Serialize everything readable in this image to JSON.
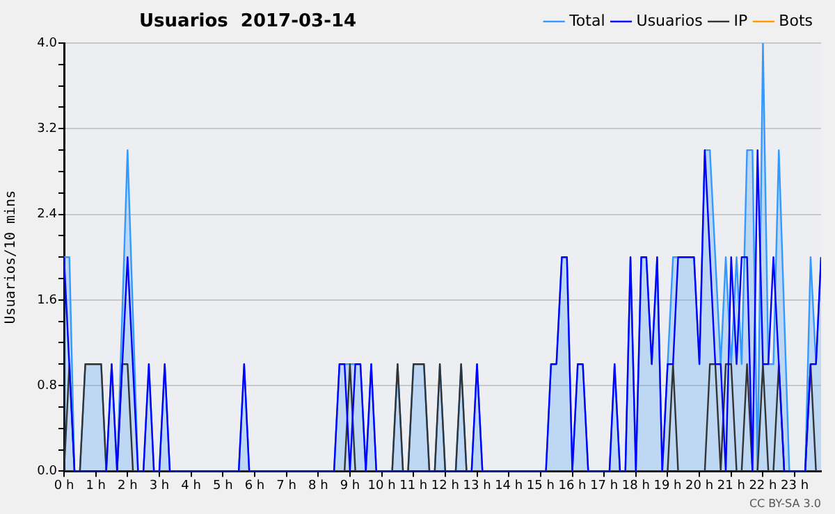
{
  "chart_data": {
    "type": "line",
    "title": "Usuarios  2017-03-14",
    "ylabel": "Usuarios/10 mins",
    "annotations": [
      "CC BY-SA 3.0"
    ],
    "xlim": [
      0,
      23.83
    ],
    "ylim": [
      0,
      4
    ],
    "xticks": [
      {
        "value": 0,
        "label": "0 h"
      },
      {
        "value": 1,
        "label": "1 h"
      },
      {
        "value": 2,
        "label": "2 h"
      },
      {
        "value": 3,
        "label": "3 h"
      },
      {
        "value": 4,
        "label": "4 h"
      },
      {
        "value": 5,
        "label": "5 h"
      },
      {
        "value": 6,
        "label": "6 h"
      },
      {
        "value": 7,
        "label": "7 h"
      },
      {
        "value": 8,
        "label": "8 h"
      },
      {
        "value": 9,
        "label": "9 h"
      },
      {
        "value": 10,
        "label": "10 h"
      },
      {
        "value": 11,
        "label": "11 h"
      },
      {
        "value": 12,
        "label": "12 h"
      },
      {
        "value": 13,
        "label": "13 h"
      },
      {
        "value": 14,
        "label": "14 h"
      },
      {
        "value": 15,
        "label": "15 h"
      },
      {
        "value": 16,
        "label": "16 h"
      },
      {
        "value": 17,
        "label": "17 h"
      },
      {
        "value": 18,
        "label": "18 h"
      },
      {
        "value": 19,
        "label": "19 h"
      },
      {
        "value": 20,
        "label": "20 h"
      },
      {
        "value": 21,
        "label": "21 h"
      },
      {
        "value": 22,
        "label": "22 h"
      },
      {
        "value": 23,
        "label": "23 h"
      }
    ],
    "yticks": [
      {
        "value": 0,
        "label": "0.0"
      },
      {
        "value": 0.2,
        "label": null
      },
      {
        "value": 0.4,
        "label": null
      },
      {
        "value": 0.6,
        "label": null
      },
      {
        "value": 0.8,
        "label": "0.8"
      },
      {
        "value": 1,
        "label": null
      },
      {
        "value": 1.2,
        "label": null
      },
      {
        "value": 1.4,
        "label": null
      },
      {
        "value": 1.6,
        "label": "1.6"
      },
      {
        "value": 1.8,
        "label": null
      },
      {
        "value": 2,
        "label": null
      },
      {
        "value": 2.2,
        "label": null
      },
      {
        "value": 2.4,
        "label": "2.4"
      },
      {
        "value": 2.6,
        "label": null
      },
      {
        "value": 2.8,
        "label": null
      },
      {
        "value": 3,
        "label": null
      },
      {
        "value": 3.2,
        "label": "3.2"
      },
      {
        "value": 3.4,
        "label": null
      },
      {
        "value": 3.6,
        "label": null
      },
      {
        "value": 3.8,
        "label": null
      },
      {
        "value": 4,
        "label": "4.0"
      }
    ],
    "grid": "y",
    "legend": "top right",
    "marker": "none",
    "line_style": "solid",
    "series": [
      {
        "name": "Total",
        "type": "area",
        "color": "#3399ff",
        "x": [
          0,
          0.17,
          0.33,
          0.5,
          0.67,
          1.17,
          1.33,
          1.5,
          1.67,
          2,
          2.33,
          2.5,
          2.67,
          2.83,
          3,
          3.17,
          3.33,
          5.5,
          5.67,
          5.83,
          8.5,
          8.67,
          9.33,
          9.5,
          9.67,
          9.83,
          10.33,
          10.5,
          10.67,
          10.83,
          11,
          11.33,
          11.5,
          11.67,
          11.83,
          12,
          12.33,
          12.5,
          12.67,
          12.83,
          13,
          13.17,
          15.17,
          15.33,
          15.5,
          15.67,
          15.83,
          16,
          16.17,
          16.33,
          16.5,
          17.17,
          17.33,
          17.5,
          17.67,
          17.83,
          18,
          18.17,
          18.33,
          18.5,
          18.67,
          18.83,
          19,
          19.17,
          19.83,
          20,
          20.17,
          20.33,
          20.67,
          20.83,
          21,
          21.17,
          21.33,
          21.5,
          21.67,
          21.83,
          22,
          22.17,
          22.33,
          22.5,
          22.83,
          23.33,
          23.5,
          23.67,
          23.83
        ],
        "values": [
          2,
          2,
          0,
          0,
          1,
          1,
          0,
          1,
          0,
          3,
          0,
          0,
          1,
          0,
          0,
          1,
          0,
          0,
          1,
          0,
          0,
          1,
          1,
          0,
          1,
          0,
          0,
          1,
          0,
          0,
          1,
          1,
          0,
          0,
          1,
          0,
          0,
          1,
          0,
          0,
          1,
          0,
          0,
          1,
          1,
          2,
          2,
          0,
          1,
          1,
          0,
          0,
          1,
          0,
          0,
          2,
          0,
          2,
          2,
          1,
          2,
          0,
          1,
          2,
          2,
          1,
          3,
          3,
          1,
          2,
          1,
          2,
          1,
          3,
          3,
          0,
          4,
          1,
          1,
          3,
          0,
          0,
          2,
          1,
          2
        ]
      },
      {
        "name": "Usuarios",
        "type": "line",
        "color": "#0000ff",
        "x": [
          0,
          0.33,
          1.33,
          1.5,
          1.67,
          2,
          2.33,
          2.5,
          2.67,
          2.83,
          3,
          3.17,
          3.33,
          5.5,
          5.67,
          5.83,
          8.5,
          8.67,
          8.83,
          9,
          9.17,
          9.33,
          9.5,
          9.67,
          9.83,
          12.83,
          13,
          13.17,
          15.17,
          15.33,
          15.5,
          15.67,
          15.83,
          16,
          16.17,
          16.33,
          16.5,
          17.17,
          17.33,
          17.5,
          17.67,
          17.83,
          18,
          18.17,
          18.33,
          18.5,
          18.67,
          18.83,
          19,
          19.17,
          19.33,
          19.83,
          20,
          20.17,
          20.5,
          20.67,
          20.83,
          21,
          21.17,
          21.33,
          21.5,
          21.67,
          21.83,
          22,
          22.17,
          22.33,
          22.67,
          23.33,
          23.5,
          23.67,
          23.83
        ],
        "values": [
          2,
          0,
          0,
          1,
          0,
          2,
          0,
          0,
          1,
          0,
          0,
          1,
          0,
          0,
          1,
          0,
          0,
          1,
          1,
          0,
          1,
          1,
          0,
          1,
          0,
          0,
          1,
          0,
          0,
          1,
          1,
          2,
          2,
          0,
          1,
          1,
          0,
          0,
          1,
          0,
          0,
          2,
          0,
          2,
          2,
          1,
          2,
          0,
          1,
          1,
          2,
          2,
          1,
          3,
          1,
          1,
          0,
          2,
          1,
          2,
          2,
          0,
          3,
          1,
          1,
          2,
          0,
          0,
          1,
          1,
          2
        ]
      },
      {
        "name": "IP",
        "type": "line",
        "color": "#333333",
        "x": [
          0,
          0.17,
          0.33,
          0.5,
          0.67,
          1.17,
          1.33,
          1.67,
          1.83,
          2,
          2.17,
          8.83,
          9,
          9.17,
          10.33,
          10.5,
          10.67,
          10.83,
          11,
          11.33,
          11.5,
          11.67,
          11.83,
          12,
          12.17,
          12.33,
          12.5,
          12.67,
          19,
          19.17,
          19.33,
          20.17,
          20.33,
          20.5,
          20.67,
          20.83,
          21,
          21.17,
          21.33,
          21.5,
          21.67,
          21.83,
          22,
          22.17,
          22.33,
          22.5,
          22.67,
          23.33,
          23.5,
          23.67,
          23.83
        ],
        "values": [
          0,
          1,
          0,
          0,
          1,
          1,
          0,
          0,
          1,
          1,
          0,
          0,
          1,
          0,
          0,
          1,
          0,
          0,
          1,
          1,
          0,
          0,
          1,
          0,
          0,
          0,
          1,
          0,
          0,
          1,
          0,
          0,
          1,
          1,
          0,
          1,
          1,
          0,
          0,
          1,
          0,
          0,
          1,
          0,
          0,
          1,
          0,
          0,
          1,
          0,
          0
        ]
      },
      {
        "name": "Bots",
        "type": "line",
        "color": "#ff9900"
      }
    ]
  }
}
